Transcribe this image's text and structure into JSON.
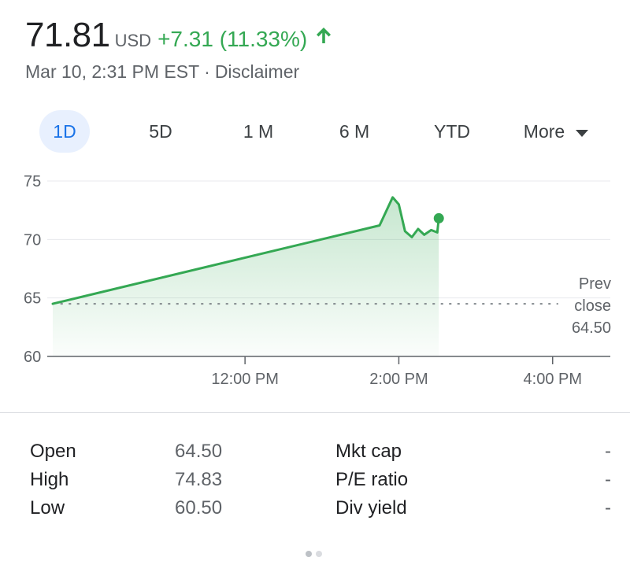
{
  "quote": {
    "price": "71.81",
    "currency": "USD",
    "change": "+7.31 (11.33%)",
    "timestamp": "Mar 10, 2:31 PM EST",
    "separator": "·",
    "disclaimer": "Disclaimer"
  },
  "tabs": [
    {
      "label": "1D",
      "active": true
    },
    {
      "label": "5D",
      "active": false
    },
    {
      "label": "1 M",
      "active": false
    },
    {
      "label": "6 M",
      "active": false
    },
    {
      "label": "YTD",
      "active": false
    },
    {
      "label": "More",
      "active": false
    }
  ],
  "colors": {
    "up": "#34a853",
    "active_tab_bg": "#e8f0fe",
    "active_tab_text": "#1a73e8"
  },
  "chart_data": {
    "type": "area",
    "y_ticks": [
      60,
      65,
      70,
      75
    ],
    "ylim": [
      60,
      75
    ],
    "x_ticks": [
      {
        "label": "12:00 PM",
        "hour": 12
      },
      {
        "label": "2:00 PM",
        "hour": 14
      },
      {
        "label": "4:00 PM",
        "hour": 16
      }
    ],
    "xlim": [
      9.5,
      16.75
    ],
    "prev_close": {
      "label_lines": [
        "Prev",
        "close",
        "64.50"
      ],
      "value": 64.5
    },
    "series": [
      {
        "points": [
          [
            9.5,
            64.5
          ],
          [
            13.75,
            71.2
          ],
          [
            13.92,
            73.6
          ],
          [
            14.0,
            73.0
          ],
          [
            14.08,
            70.7
          ],
          [
            14.17,
            70.2
          ],
          [
            14.25,
            70.9
          ],
          [
            14.33,
            70.4
          ],
          [
            14.42,
            70.8
          ],
          [
            14.5,
            70.6
          ],
          [
            14.52,
            71.81
          ]
        ],
        "last_value": 71.81
      }
    ]
  },
  "stats": [
    {
      "label": "Open",
      "value": "64.50",
      "label2": "Mkt cap",
      "value2": "-"
    },
    {
      "label": "High",
      "value": "74.83",
      "label2": "P/E ratio",
      "value2": "-"
    },
    {
      "label": "Low",
      "value": "60.50",
      "label2": "Div yield",
      "value2": "-"
    }
  ]
}
